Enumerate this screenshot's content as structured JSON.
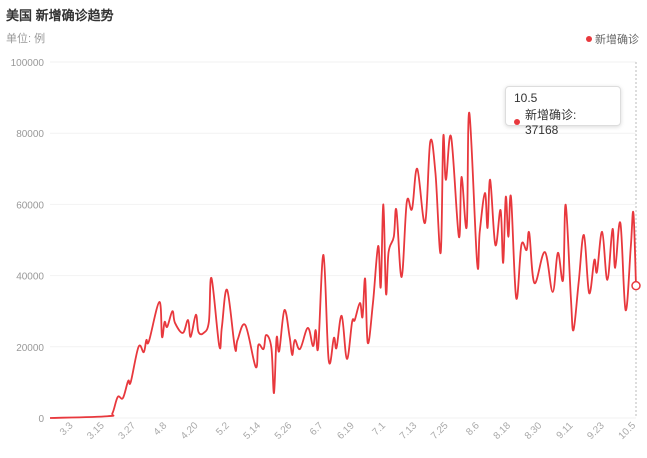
{
  "chart_data": {
    "type": "line",
    "title": "美国 新增确诊趋势",
    "unit_label": "单位: 例",
    "legend": {
      "entries": [
        "新增确诊"
      ],
      "placement": "top-right"
    },
    "series": [
      {
        "name": "新增确诊",
        "color": "#e8383d"
      }
    ],
    "ylim": [
      0,
      100000
    ],
    "yticks": [
      "0",
      "20000",
      "40000",
      "60000",
      "80000",
      "100000"
    ],
    "xticks": [
      "3.3",
      "3.15",
      "3.27",
      "4.8",
      "4.20",
      "5.2",
      "5.14",
      "5.26",
      "6.7",
      "6.19",
      "7.1",
      "7.13",
      "7.25",
      "8.6",
      "8.18",
      "8.30",
      "9.11",
      "9.23",
      "10.5"
    ],
    "grid": true,
    "points": [
      [
        "2.23",
        0
      ],
      [
        "3.16",
        500
      ],
      [
        "3.18",
        1400
      ],
      [
        "3.20",
        5900
      ],
      [
        "3.22",
        5600
      ],
      [
        "3.24",
        10400
      ],
      [
        "3.25",
        10100
      ],
      [
        "3.28",
        20000
      ],
      [
        "3.30",
        18500
      ],
      [
        "3.31",
        21900
      ],
      [
        "4.1",
        21600
      ],
      [
        "4.5",
        32600
      ],
      [
        "4.6",
        22800
      ],
      [
        "4.7",
        27000
      ],
      [
        "4.8",
        25600
      ],
      [
        "4.10",
        30000
      ],
      [
        "4.11",
        26700
      ],
      [
        "4.14",
        23900
      ],
      [
        "4.16",
        27500
      ],
      [
        "4.17",
        22800
      ],
      [
        "4.19",
        29000
      ],
      [
        "4.20",
        24200
      ],
      [
        "4.22",
        23900
      ],
      [
        "4.24",
        27000
      ],
      [
        "4.25",
        39300
      ],
      [
        "4.28",
        20200
      ],
      [
        "4.29",
        25600
      ],
      [
        "5.1",
        36000
      ],
      [
        "5.4",
        19700
      ],
      [
        "5.5",
        21900
      ],
      [
        "5.8",
        26100
      ],
      [
        "5.12",
        14300
      ],
      [
        "5.13",
        20500
      ],
      [
        "5.15",
        19400
      ],
      [
        "5.16",
        23300
      ],
      [
        "5.18",
        19700
      ],
      [
        "5.19",
        7000
      ],
      [
        "5.20",
        22500
      ],
      [
        "5.21",
        18800
      ],
      [
        "5.23",
        30300
      ],
      [
        "5.25",
        22800
      ],
      [
        "5.26",
        17700
      ],
      [
        "5.27",
        21900
      ],
      [
        "5.29",
        19400
      ],
      [
        "6.1",
        25300
      ],
      [
        "6.3",
        20200
      ],
      [
        "6.4",
        24700
      ],
      [
        "6.5",
        20000
      ],
      [
        "6.7",
        45800
      ],
      [
        "6.9",
        16300
      ],
      [
        "6.11",
        22500
      ],
      [
        "6.12",
        19700
      ],
      [
        "6.14",
        28700
      ],
      [
        "6.16",
        16600
      ],
      [
        "6.18",
        27000
      ],
      [
        "6.19",
        27500
      ],
      [
        "6.21",
        32300
      ],
      [
        "6.22",
        28400
      ],
      [
        "6.23",
        39100
      ],
      [
        "6.24",
        21100
      ],
      [
        "6.26",
        32300
      ],
      [
        "6.28",
        48300
      ],
      [
        "6.29",
        36800
      ],
      [
        "6.30",
        60000
      ],
      [
        "7.1",
        35000
      ],
      [
        "7.2",
        46600
      ],
      [
        "7.4",
        50900
      ],
      [
        "7.5",
        58400
      ],
      [
        "7.7",
        39600
      ],
      [
        "7.9",
        60700
      ],
      [
        "7.11",
        58700
      ],
      [
        "7.13",
        70000
      ],
      [
        "7.16",
        54800
      ],
      [
        "7.18",
        77600
      ],
      [
        "7.20",
        68800
      ],
      [
        "7.22",
        46400
      ],
      [
        "7.23",
        79000
      ],
      [
        "7.24",
        66900
      ],
      [
        "7.26",
        79000
      ],
      [
        "7.29",
        50900
      ],
      [
        "7.30",
        67700
      ],
      [
        "8.1",
        53700
      ],
      [
        "8.2",
        85700
      ],
      [
        "8.5",
        43600
      ],
      [
        "8.6",
        52300
      ],
      [
        "8.8",
        63200
      ],
      [
        "8.9",
        53400
      ],
      [
        "8.10",
        66900
      ],
      [
        "8.12",
        48600
      ],
      [
        "8.14",
        58400
      ],
      [
        "8.15",
        43600
      ],
      [
        "8.16",
        62100
      ],
      [
        "8.17",
        50900
      ],
      [
        "8.18",
        62100
      ],
      [
        "8.20",
        33700
      ],
      [
        "8.22",
        48600
      ],
      [
        "8.24",
        47200
      ],
      [
        "8.25",
        52000
      ],
      [
        "8.27",
        37900
      ],
      [
        "8.31",
        46600
      ],
      [
        "9.3",
        35400
      ],
      [
        "9.5",
        46400
      ],
      [
        "9.7",
        38800
      ],
      [
        "9.8",
        59900
      ],
      [
        "9.10",
        33700
      ],
      [
        "9.11",
        24700
      ],
      [
        "9.13",
        38200
      ],
      [
        "9.15",
        51400
      ],
      [
        "9.17",
        35100
      ],
      [
        "9.19",
        44400
      ],
      [
        "9.20",
        41000
      ],
      [
        "9.22",
        52300
      ],
      [
        "9.24",
        38800
      ],
      [
        "9.26",
        53100
      ],
      [
        "9.27",
        42200
      ],
      [
        "9.29",
        54800
      ],
      [
        "10.1",
        30300
      ],
      [
        "10.3",
        48100
      ],
      [
        "10.4",
        57600
      ],
      [
        "10.5",
        37168
      ]
    ],
    "tooltip": {
      "date": "10.5",
      "label": "新增确诊: 37168"
    }
  }
}
